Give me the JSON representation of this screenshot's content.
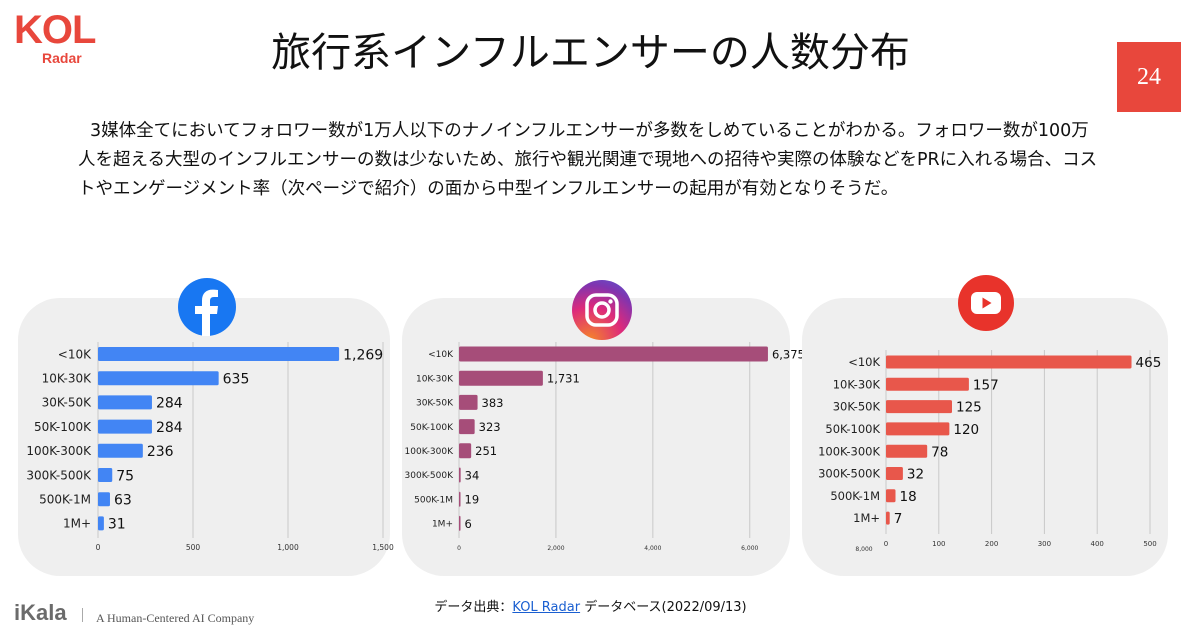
{
  "header": {
    "logo_main": "KOL",
    "logo_sub": "Radar",
    "title": "旅行系インフルエンサーの人数分布",
    "page_number": "24"
  },
  "description": "3媒体全てにおいてフォロワー数が1万人以下のナノインフルエンサーが多数をしめていることがわかる。フォロワー数が100万人を超える大型のインフルエンサーの数は少ないため、旅行や観光関連で現地への招待や実際の体験などをPRに入れる場合、コストやエンゲージメント率（次ページで紹介）の面から中型インフルエンサーの起用が有効となりそうだ。",
  "source": {
    "prefix": "データ出典：",
    "link": "KOL Radar",
    "suffix": " データベース(2022/09/13)"
  },
  "footer": {
    "brand": "iKala",
    "tagline": "A Human-Centered AI Company"
  },
  "chart_data": [
    {
      "type": "bar",
      "orientation": "horizontal",
      "platform_icon": "facebook-icon",
      "color": "#4285f4",
      "categories": [
        "<10K",
        "10K-30K",
        "30K-50K",
        "50K-100K",
        "100K-300K",
        "300K-500K",
        "500K-1M",
        "1M+"
      ],
      "values": [
        1269,
        635,
        284,
        284,
        236,
        75,
        63,
        31
      ],
      "value_labels": [
        "1,269",
        "635",
        "284",
        "284",
        "236",
        "75",
        "63",
        "31"
      ],
      "xlim": [
        0,
        1500
      ],
      "xticks": [
        0,
        500,
        1000,
        1500
      ],
      "xtick_labels": [
        "0",
        "500",
        "1,000",
        "1,500"
      ],
      "grid": true
    },
    {
      "type": "bar",
      "orientation": "horizontal",
      "platform_icon": "instagram-icon",
      "color": "#a64d79",
      "categories": [
        "<10K",
        "10K-30K",
        "30K-50K",
        "50K-100K",
        "100K-300K",
        "300K-500K",
        "500K-1M",
        "1M+"
      ],
      "values": [
        6375,
        1731,
        383,
        323,
        251,
        34,
        19,
        6
      ],
      "value_labels": [
        "6,375",
        "1,731",
        "383",
        "323",
        "251",
        "34",
        "19",
        "6"
      ],
      "xlim": [
        0,
        6500
      ],
      "xticks": [
        0,
        2000,
        4000,
        6000
      ],
      "xtick_labels": [
        "0",
        "2,000",
        "4,000",
        "6,000"
      ],
      "grid": true
    },
    {
      "type": "bar",
      "orientation": "horizontal",
      "platform_icon": "youtube-icon",
      "color": "#e8574b",
      "categories": [
        "<10K",
        "10K-30K",
        "30K-50K",
        "50K-100K",
        "100K-300K",
        "300K-500K",
        "500K-1M",
        "1M+"
      ],
      "values": [
        465,
        157,
        125,
        120,
        78,
        32,
        18,
        7
      ],
      "value_labels": [
        "465",
        "157",
        "125",
        "120",
        "78",
        "32",
        "18",
        "7"
      ],
      "xlim": [
        0,
        500
      ],
      "xticks": [
        0,
        100,
        200,
        300,
        400,
        500
      ],
      "xtick_labels": [
        "0",
        "100",
        "200",
        "300",
        "400",
        "500"
      ],
      "extra_tick_label": "8,000",
      "grid": true
    }
  ]
}
